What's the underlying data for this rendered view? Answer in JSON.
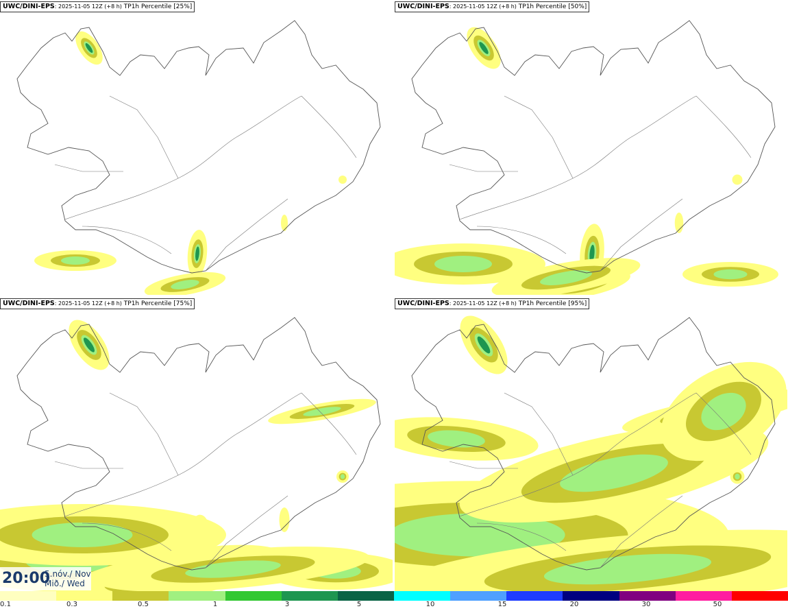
{
  "panels": [
    {
      "model": "UWC/DINI-EPS",
      "run": ": 2025-11-05 12Z (+8 h)",
      "label": " TP1h Percentile [25%]",
      "level": 1
    },
    {
      "model": "UWC/DINI-EPS",
      "run": ": 2025-11-05 12Z (+8 h)",
      "label": " TP1h Percentile [50%]",
      "level": 2
    },
    {
      "model": "UWC/DINI-EPS",
      "run": ": 2025-11-05 12Z (+8 h)",
      "label": " TP1h Percentile [75%]",
      "level": 3
    },
    {
      "model": "UWC/DINI-EPS",
      "run": ": 2025-11-05 12Z (+8 h)",
      "label": " TP1h Percentile [95%]",
      "level": 4
    }
  ],
  "timestamp": {
    "time": "20:00",
    "date_line1": "5.nóv./ Nov",
    "date_line2": "Mið./ Wed"
  },
  "colorbar": {
    "colors": [
      "#ffffc0",
      "#ffff80",
      "#c8c832",
      "#a0f080",
      "#32c832",
      "#1e9650",
      "#0a6446",
      "#00ffff",
      "#4fa0ff",
      "#1e3cff",
      "#000080",
      "#800080",
      "#ff1ea0",
      "#ff0000"
    ],
    "labels": [
      "0.1",
      "0.3",
      "0.5",
      "1",
      "3",
      "5",
      "10",
      "15",
      "20",
      "30",
      "50"
    ]
  }
}
